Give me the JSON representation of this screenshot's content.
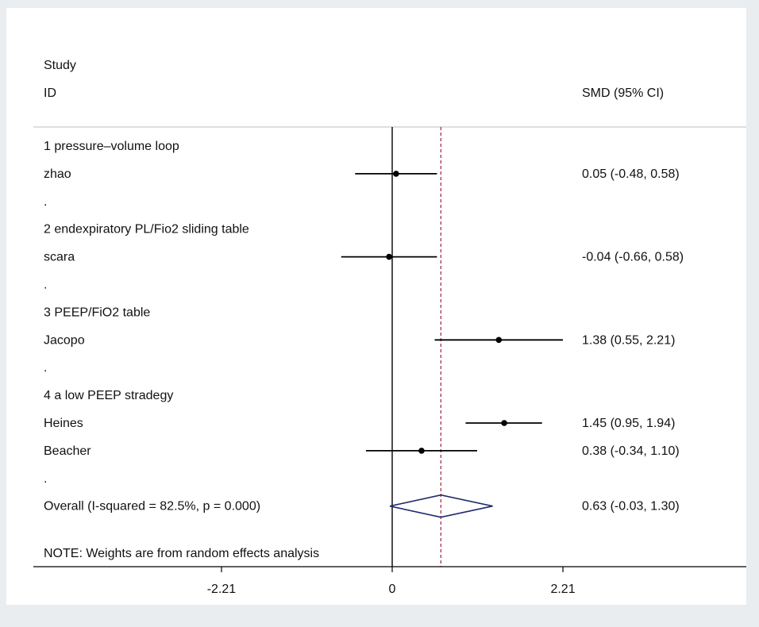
{
  "colors": {
    "outer_bg": "#e9edf0",
    "plot_bg": "#ffffff",
    "marker": "#000000",
    "null_line": "#000000",
    "overall_line": "#a0344b",
    "diamond": "#1f2a6b",
    "separator": "#c8ccd0"
  },
  "header": {
    "col_label_line1": "Study",
    "col_label_line2": "ID",
    "col_effect": "SMD (95% CI)"
  },
  "chart_data": {
    "type": "forest",
    "effect_measure": "SMD (95% CI)",
    "x_ticks": [
      {
        "value": -2.21,
        "label": "-2.21"
      },
      {
        "value": 0,
        "label": "0"
      },
      {
        "value": 2.21,
        "label": "2.21"
      }
    ],
    "xlim": [
      -4.85,
      4.85
    ],
    "null_value": 0,
    "overall_effect": 0.63,
    "rows": [
      {
        "kind": "group",
        "label": "1 pressure–volume loop"
      },
      {
        "kind": "study",
        "label": "zhao",
        "est": 0.05,
        "lo": -0.48,
        "hi": 0.58,
        "ci_text": "0.05 (-0.48, 0.58)"
      },
      {
        "kind": "spacer",
        "label": "."
      },
      {
        "kind": "group",
        "label": "2 endexpiratory PL/Fio2 sliding table"
      },
      {
        "kind": "study",
        "label": "scara",
        "est": -0.04,
        "lo": -0.66,
        "hi": 0.58,
        "ci_text": "-0.04 (-0.66, 0.58)"
      },
      {
        "kind": "spacer",
        "label": "."
      },
      {
        "kind": "group",
        "label": "3 PEEP/FiO2 table"
      },
      {
        "kind": "study",
        "label": "Jacopo",
        "est": 1.38,
        "lo": 0.55,
        "hi": 2.21,
        "ci_text": "1.38 (0.55, 2.21)"
      },
      {
        "kind": "spacer",
        "label": "."
      },
      {
        "kind": "group",
        "label": "4 a low PEEP stradegy"
      },
      {
        "kind": "study",
        "label": "Heines",
        "est": 1.45,
        "lo": 0.95,
        "hi": 1.94,
        "ci_text": "1.45 (0.95, 1.94)"
      },
      {
        "kind": "study",
        "label": "Beacher",
        "est": 0.38,
        "lo": -0.34,
        "hi": 1.1,
        "ci_text": "0.38 (-0.34, 1.10)"
      },
      {
        "kind": "spacer",
        "label": "."
      },
      {
        "kind": "overall",
        "label": "Overall  (I-squared = 82.5%, p = 0.000)",
        "est": 0.63,
        "lo": -0.03,
        "hi": 1.3,
        "ci_text": "0.63 (-0.03, 1.30)"
      }
    ],
    "note": "NOTE: Weights are from random effects analysis"
  }
}
